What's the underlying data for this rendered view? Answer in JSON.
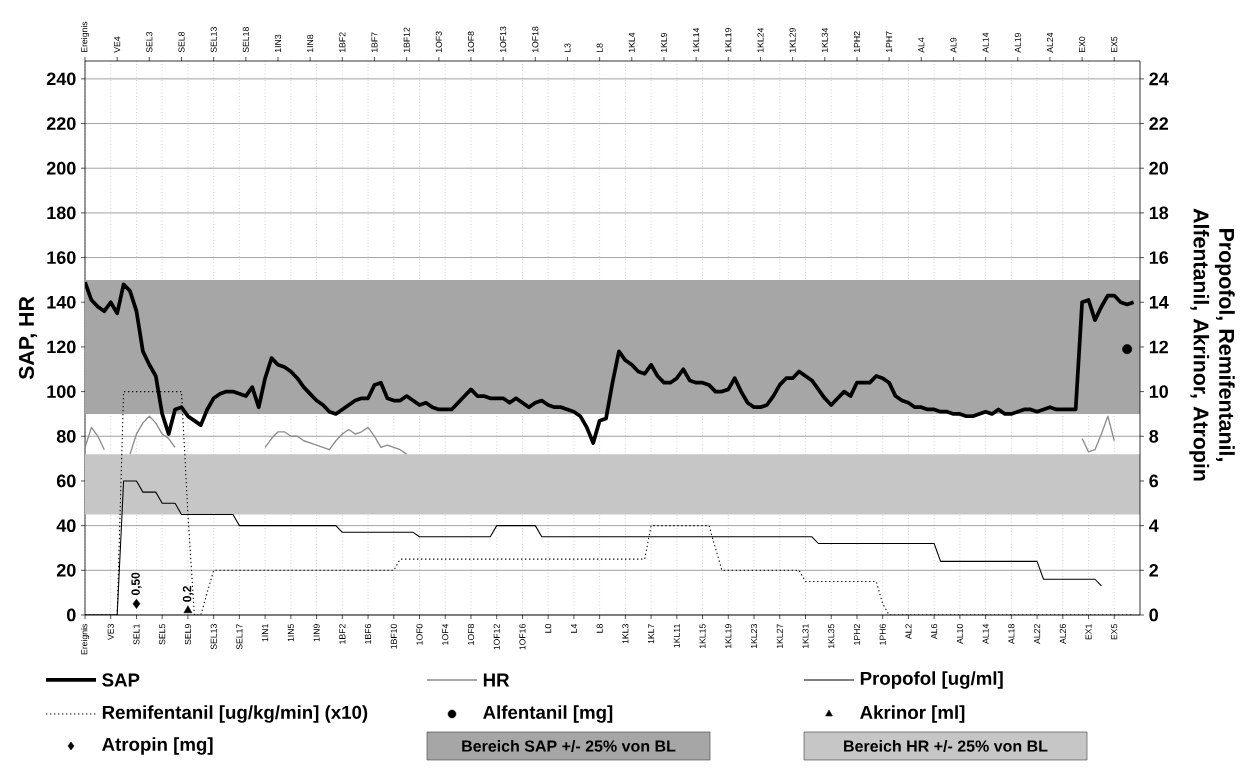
{
  "chart_data": {
    "type": "line",
    "ylabel": "SAP, HR",
    "y2label": "Propofol, Remifentanil, Alfentanil, Akrinor, Atropin",
    "categories": [
      "Ereignis",
      null,
      null,
      null,
      "VE3",
      null,
      null,
      null,
      "SEL1",
      null,
      null,
      null,
      "SEL5",
      null,
      null,
      null,
      "SEL9",
      null,
      null,
      null,
      "SEL13",
      null,
      null,
      null,
      "SEL17",
      null,
      null,
      null,
      "1IN1",
      null,
      null,
      null,
      "1IN5",
      null,
      null,
      null,
      "1IN9",
      null,
      null,
      null,
      "1BF2",
      null,
      null,
      null,
      "1BF6",
      null,
      null,
      null,
      "1BF10",
      null,
      null,
      null,
      "1OF0",
      null,
      null,
      null,
      "1OF4",
      null,
      null,
      null,
      "1OF8",
      null,
      null,
      null,
      "1OF12",
      null,
      null,
      null,
      "1OF16",
      null,
      null,
      null,
      "L0",
      null,
      null,
      null,
      "L4",
      null,
      null,
      null,
      "L8",
      null,
      null,
      null,
      "1KL3",
      null,
      null,
      null,
      "1KL7",
      null,
      null,
      null,
      "1KL11",
      null,
      null,
      null,
      "1KL15",
      null,
      null,
      null,
      "1KL19",
      null,
      null,
      null,
      "1KL23",
      null,
      null,
      null,
      "1KL27",
      null,
      null,
      null,
      "1KL31",
      null,
      null,
      null,
      "1KL35",
      null,
      null,
      null,
      "1PH2",
      null,
      null,
      null,
      "1PH6",
      null,
      null,
      null,
      "AL2",
      null,
      null,
      null,
      "AL6",
      null,
      null,
      null,
      "AL10",
      null,
      null,
      null,
      "AL14",
      null,
      null,
      null,
      "AL18",
      null,
      null,
      null,
      "AL22",
      null,
      null,
      null,
      "AL26",
      null,
      null,
      null,
      "EX1",
      null,
      null,
      null,
      "EX5",
      null,
      null,
      null
    ],
    "annotations": [
      "Ereignis",
      "VE4",
      "SEL3",
      "SEL8",
      "SEL13",
      "SEL18",
      "1IN3",
      "1IN8",
      "1BF2",
      "1BF7",
      "1BF12",
      "1OF3",
      "1OF8",
      "1OF13",
      "1OF18",
      "L3",
      "L8",
      "1KL4",
      "1KL9",
      "1KL14",
      "1KL19",
      "1KL24",
      "1KL29",
      "1KL34",
      "1PH2",
      "1PH7",
      "AL4",
      "AL9",
      "AL14",
      "AL19",
      "AL24",
      "EX0",
      "EX5"
    ],
    "ylim": [
      0,
      248
    ],
    "yticks": [
      0,
      20,
      40,
      60,
      80,
      100,
      120,
      140,
      160,
      180,
      200,
      220,
      240
    ],
    "y2lim": [
      0,
      24.8
    ],
    "y2ticks": [
      0,
      2,
      4,
      6,
      8,
      10,
      12,
      14,
      16,
      18,
      20,
      22,
      24
    ],
    "grid": true,
    "legend": "bottom",
    "bands": [
      {
        "axis": "y",
        "from": 90,
        "to": 150,
        "label": "Bereich SAP +/- 25% von BL",
        "color": "#a6a6a6"
      },
      {
        "axis": "y",
        "from": 45,
        "to": 72,
        "label": "Bereich HR +/- 25% von BL",
        "color": "#c6c6c6"
      }
    ],
    "series": [
      {
        "name": "SAP",
        "color": "#000000",
        "values": [
          149,
          141,
          138,
          136,
          140,
          135,
          148,
          145,
          136,
          118,
          112,
          107,
          90,
          81,
          92,
          93,
          89,
          87,
          85,
          92,
          97,
          99,
          100,
          100,
          99,
          98,
          102,
          93,
          106,
          115,
          112,
          111,
          109,
          106,
          102,
          99,
          96,
          94,
          91,
          90,
          92,
          94,
          96,
          97,
          97,
          103,
          104,
          97,
          96,
          96,
          98,
          96,
          94,
          95,
          93,
          92,
          92,
          92,
          95,
          98,
          101,
          98,
          98,
          97,
          97,
          97,
          95,
          97,
          95,
          93,
          95,
          96,
          94,
          93,
          93,
          92,
          91,
          89,
          84,
          77,
          87,
          88,
          104,
          118,
          114,
          112,
          109,
          108,
          112,
          107,
          104,
          104,
          106,
          110,
          105,
          104,
          104,
          103,
          100,
          100,
          101,
          106,
          100,
          95,
          93,
          93,
          94,
          98,
          103,
          106,
          106,
          109,
          107,
          105,
          101,
          97,
          94,
          97,
          100,
          98,
          104,
          104,
          104,
          107,
          106,
          104,
          98,
          96,
          95,
          93,
          93,
          92,
          92,
          91,
          91,
          90,
          90,
          89,
          89,
          90,
          91,
          90,
          92,
          90,
          90,
          91,
          92,
          92,
          91,
          92,
          93,
          92,
          92,
          92,
          92,
          140,
          141,
          132,
          138,
          143,
          143,
          140,
          139,
          140
        ]
      },
      {
        "name": "HR",
        "color": "#8c8c8c",
        "values": [
          75,
          84,
          80,
          74,
          null,
          null,
          null,
          72,
          81,
          86,
          89,
          86,
          81,
          79,
          75,
          null,
          null,
          null,
          null,
          null,
          null,
          null,
          null,
          null,
          null,
          null,
          null,
          null,
          75,
          79,
          82,
          82,
          80,
          80,
          78,
          77,
          76,
          75,
          74,
          78,
          81,
          83,
          81,
          82,
          84,
          80,
          75,
          76,
          75,
          74,
          72,
          null,
          null,
          null,
          null,
          null,
          null,
          null,
          null,
          null,
          null,
          null,
          null,
          null,
          null,
          null,
          null,
          null,
          null,
          null,
          null,
          null,
          null,
          null,
          null,
          null,
          null,
          null,
          null,
          null,
          null,
          null,
          null,
          null,
          null,
          null,
          null,
          null,
          null,
          null,
          null,
          null,
          null,
          null,
          null,
          null,
          null,
          null,
          null,
          null,
          null,
          null,
          null,
          null,
          null,
          null,
          null,
          null,
          null,
          null,
          null,
          null,
          null,
          null,
          null,
          null,
          null,
          null,
          null,
          null,
          null,
          null,
          null,
          null,
          null,
          null,
          null,
          null,
          null,
          null,
          null,
          null,
          null,
          null,
          null,
          null,
          null,
          null,
          null,
          null,
          null,
          null,
          null,
          null,
          null,
          null,
          null,
          null,
          null,
          null,
          null,
          null,
          null,
          null,
          null,
          79,
          73,
          74,
          81,
          89,
          78,
          null,
          null,
          null
        ]
      },
      {
        "name": "Propofol [ug/ml]",
        "type": "line",
        "axis": "y2",
        "color": "#000000",
        "values": [
          0,
          0,
          0,
          0,
          0,
          0,
          6,
          6,
          6,
          5.5,
          5.5,
          5.5,
          5,
          5,
          5,
          4.5,
          4.5,
          4.5,
          4.5,
          4.5,
          4.5,
          4.5,
          4.5,
          4.5,
          4,
          4,
          4,
          4,
          4,
          4,
          4,
          4,
          4,
          4,
          4,
          4,
          4,
          4,
          4,
          4,
          3.7,
          3.7,
          3.7,
          3.7,
          3.7,
          3.7,
          3.7,
          3.7,
          3.7,
          3.7,
          3.7,
          3.7,
          3.5,
          3.5,
          3.5,
          3.5,
          3.5,
          3.5,
          3.5,
          3.5,
          3.5,
          3.5,
          3.5,
          3.5,
          4,
          4,
          4,
          4,
          4,
          4,
          4,
          3.5,
          3.5,
          3.5,
          3.5,
          3.5,
          3.5,
          3.5,
          3.5,
          3.5,
          3.5,
          3.5,
          3.5,
          3.5,
          3.5,
          3.5,
          3.5,
          3.5,
          3.5,
          3.5,
          3.5,
          3.5,
          3.5,
          3.5,
          3.5,
          3.5,
          3.5,
          3.5,
          3.5,
          3.5,
          3.5,
          3.5,
          3.5,
          3.5,
          3.5,
          3.5,
          3.5,
          3.5,
          3.5,
          3.5,
          3.5,
          3.5,
          3.5,
          3.5,
          3.2,
          3.2,
          3.2,
          3.2,
          3.2,
          3.2,
          3.2,
          3.2,
          3.2,
          3.2,
          3.2,
          3.2,
          3.2,
          3.2,
          3.2,
          3.2,
          3.2,
          3.2,
          3.2,
          2.4,
          2.4,
          2.4,
          2.4,
          2.4,
          2.4,
          2.4,
          2.4,
          2.4,
          2.4,
          2.4,
          2.4,
          2.4,
          2.4,
          2.4,
          2.4,
          1.6,
          1.6,
          1.6,
          1.6,
          1.6,
          1.6,
          1.6,
          1.6,
          1.6,
          1.3,
          null,
          null,
          null,
          null,
          null
        ]
      },
      {
        "name": "Remifentanil [ug/kg/min] (x10)",
        "type": "line",
        "axis": "y2",
        "line_style": "dotted",
        "color": "#000000",
        "values": [
          0,
          0,
          0,
          0,
          0,
          0,
          10,
          10,
          10,
          10,
          10,
          10,
          10,
          10,
          10,
          10,
          4.5,
          0,
          0,
          1,
          2,
          2,
          2,
          2,
          2,
          2,
          2,
          2,
          2,
          2,
          2,
          2,
          2,
          2,
          2,
          2,
          2,
          2,
          2,
          2,
          2,
          2,
          2,
          2,
          2,
          2,
          2,
          2,
          2,
          2.5,
          2.5,
          2.5,
          2.5,
          2.5,
          2.5,
          2.5,
          2.5,
          2.5,
          2.5,
          2.5,
          2.5,
          2.5,
          2.5,
          2.5,
          2.5,
          2.5,
          2.5,
          2.5,
          2.5,
          2.5,
          2.5,
          2.5,
          2.5,
          2.5,
          2.5,
          2.5,
          2.5,
          2.5,
          2.5,
          2.5,
          2.5,
          2.5,
          2.5,
          2.5,
          2.5,
          2.5,
          2.5,
          2.5,
          4,
          4,
          4,
          4,
          4,
          4,
          4,
          4,
          4,
          4,
          3,
          2,
          2,
          2,
          2,
          2,
          2,
          2,
          2,
          2,
          2,
          2,
          2,
          2,
          1.5,
          1.5,
          1.5,
          1.5,
          1.5,
          1.5,
          1.5,
          1.5,
          1.5,
          1.5,
          1.5,
          1.5,
          0.5,
          0,
          0,
          0,
          0,
          0,
          0,
          0,
          0,
          0,
          0,
          0,
          0,
          0,
          0,
          0,
          0,
          0,
          0,
          0,
          0,
          0,
          0,
          0,
          0,
          0,
          0,
          0,
          0,
          0,
          0,
          0,
          0,
          0,
          0,
          0,
          0,
          0,
          0,
          0
        ]
      },
      {
        "name": "Alfentanil [mg]",
        "type": "scatter",
        "axis": "y2",
        "marker": "circle",
        "color": "#000000",
        "values": [
          null,
          null,
          null,
          null,
          null,
          null,
          null,
          null,
          null,
          null,
          null,
          null,
          null,
          null,
          null,
          null,
          null,
          null,
          null,
          null,
          null,
          null,
          null,
          null,
          null,
          null,
          null,
          null,
          null,
          null,
          null,
          null,
          null,
          null,
          null,
          null,
          null,
          null,
          null,
          null,
          null,
          null,
          null,
          null,
          null,
          null,
          null,
          null,
          null,
          null,
          null,
          null,
          null,
          null,
          null,
          null,
          null,
          null,
          null,
          null,
          null,
          null,
          null,
          null,
          null,
          null,
          null,
          null,
          null,
          null,
          null,
          null,
          null,
          null,
          null,
          null,
          null,
          null,
          null,
          null,
          null,
          null,
          null,
          null,
          null,
          null,
          null,
          null,
          null,
          null,
          null,
          null,
          null,
          null,
          null,
          null,
          null,
          null,
          null,
          null,
          null,
          null,
          null,
          null,
          null,
          null,
          null,
          null,
          null,
          null,
          null,
          null,
          null,
          null,
          null,
          null,
          null,
          null,
          null,
          null,
          null,
          null,
          null,
          null,
          null,
          null,
          null,
          null,
          null,
          null,
          null,
          null,
          null,
          null,
          null,
          null,
          null,
          null,
          null,
          null,
          null,
          null,
          null,
          null,
          null,
          null,
          null,
          null,
          null,
          null,
          null,
          null,
          null,
          null,
          null,
          null,
          null,
          null,
          null,
          null,
          null,
          null,
          11.9,
          null
        ]
      },
      {
        "name": "Akrinor [ml]",
        "type": "scatter",
        "axis": "y2",
        "marker": "triangle",
        "color": "#000000",
        "values": [
          null,
          null,
          null,
          null,
          null,
          null,
          null,
          null,
          null,
          null,
          null,
          null,
          null,
          null,
          null,
          null,
          0.2,
          null,
          null,
          null,
          null,
          null,
          null,
          null,
          null,
          null,
          null,
          null,
          null,
          null,
          null,
          null,
          null,
          null,
          null,
          null,
          null,
          null,
          null,
          null,
          null,
          null,
          null,
          null,
          null,
          null,
          null,
          null,
          null,
          null,
          null,
          null,
          null,
          null,
          null,
          null,
          null,
          null,
          null,
          null,
          null,
          null,
          null,
          null,
          null,
          null,
          null,
          null,
          null,
          null,
          null,
          null,
          null,
          null,
          null,
          null,
          null,
          null,
          null,
          null,
          null,
          null,
          null,
          null,
          null,
          null,
          null,
          null,
          null,
          null,
          null,
          null,
          null,
          null,
          null,
          null,
          null,
          null,
          null,
          null,
          null,
          null,
          null,
          null,
          null,
          null,
          null,
          null,
          null,
          null,
          null,
          null,
          null,
          null,
          null,
          null,
          null,
          null,
          null,
          null,
          null,
          null,
          null,
          null,
          null,
          null,
          null,
          null,
          null,
          null,
          null,
          null,
          null,
          null,
          null,
          null,
          null,
          null,
          null,
          null,
          null,
          null,
          null,
          null,
          null,
          null,
          null,
          null,
          null,
          null,
          null,
          null,
          null,
          null,
          null,
          null,
          null,
          null,
          null,
          null,
          null,
          null,
          null,
          null
        ],
        "value_labels": [
          null,
          null,
          null,
          null,
          null,
          null,
          null,
          null,
          null,
          null,
          null,
          null,
          null,
          null,
          null,
          null,
          "0,2",
          null,
          null,
          null,
          null,
          null,
          null,
          null,
          null,
          null,
          null,
          null,
          null,
          null,
          null,
          null,
          null,
          null,
          null,
          null,
          null,
          null,
          null,
          null,
          null,
          null,
          null,
          null,
          null,
          null,
          null,
          null,
          null,
          null,
          null,
          null,
          null,
          null,
          null,
          null,
          null,
          null,
          null,
          null,
          null,
          null,
          null,
          null,
          null,
          null,
          null,
          null,
          null,
          null,
          null,
          null,
          null,
          null,
          null,
          null,
          null,
          null,
          null,
          null,
          null,
          null,
          null,
          null,
          null,
          null,
          null,
          null,
          null,
          null,
          null,
          null,
          null,
          null,
          null,
          null,
          null,
          null,
          null,
          null,
          null,
          null,
          null,
          null,
          null,
          null,
          null,
          null,
          null,
          null,
          null,
          null,
          null,
          null,
          null,
          null,
          null,
          null,
          null,
          null,
          null,
          null,
          null,
          null,
          null,
          null,
          null,
          null,
          null,
          null,
          null,
          null,
          null,
          null,
          null,
          null,
          null,
          null,
          null,
          null,
          null,
          null,
          null,
          null,
          null,
          null,
          null,
          null,
          null,
          null,
          null,
          null,
          null,
          null,
          null,
          null,
          null,
          null,
          null,
          null,
          null,
          null,
          null,
          null
        ]
      },
      {
        "name": "Atropin [mg]",
        "type": "scatter",
        "axis": "y2",
        "marker": "diamond",
        "color": "#000000",
        "values": [
          null,
          null,
          null,
          null,
          null,
          null,
          null,
          null,
          0.5,
          null,
          null,
          null,
          null,
          null,
          null,
          null,
          null,
          null,
          null,
          null,
          null,
          null,
          null,
          null,
          null,
          null,
          null,
          null,
          null,
          null,
          null,
          null,
          null,
          null,
          null,
          null,
          null,
          null,
          null,
          null,
          null,
          null,
          null,
          null,
          null,
          null,
          null,
          null,
          null,
          null,
          null,
          null,
          null,
          null,
          null,
          null,
          null,
          null,
          null,
          null,
          null,
          null,
          null,
          null,
          null,
          null,
          null,
          null,
          null,
          null,
          null,
          null,
          null,
          null,
          null,
          null,
          null,
          null,
          null,
          null,
          null,
          null,
          null,
          null,
          null,
          null,
          null,
          null,
          null,
          null,
          null,
          null,
          null,
          null,
          null,
          null,
          null,
          null,
          null,
          null,
          null,
          null,
          null,
          null,
          null,
          null,
          null,
          null,
          null,
          null,
          null,
          null,
          null,
          null,
          null,
          null,
          null,
          null,
          null,
          null,
          null,
          null,
          null,
          null,
          null,
          null,
          null,
          null,
          null,
          null,
          null,
          null,
          null,
          null,
          null,
          null,
          null,
          null,
          null,
          null,
          null,
          null,
          null,
          null,
          null,
          null,
          null,
          null,
          null,
          null,
          null,
          null,
          null,
          null,
          null,
          null,
          null,
          null,
          null,
          null,
          null,
          null,
          null,
          null
        ],
        "value_labels": [
          null,
          null,
          null,
          null,
          null,
          null,
          null,
          null,
          "0,50",
          null,
          null,
          null,
          null,
          null,
          null,
          null,
          null,
          null,
          null,
          null,
          null,
          null,
          null,
          null,
          null,
          null,
          null,
          null,
          null,
          null,
          null,
          null,
          null,
          null,
          null,
          null,
          null,
          null,
          null,
          null,
          null,
          null,
          null,
          null,
          null,
          null,
          null,
          null,
          null,
          null,
          null,
          null,
          null,
          null,
          null,
          null,
          null,
          null,
          null,
          null,
          null,
          null,
          null,
          null,
          null,
          null,
          null,
          null,
          null,
          null,
          null,
          null,
          null,
          null,
          null,
          null,
          null,
          null,
          null,
          null,
          null,
          null,
          null,
          null,
          null,
          null,
          null,
          null,
          null,
          null,
          null,
          null,
          null,
          null,
          null,
          null,
          null,
          null,
          null,
          null,
          null,
          null,
          null,
          null,
          null,
          null,
          null,
          null,
          null,
          null,
          null,
          null,
          null,
          null,
          null,
          null,
          null,
          null,
          null,
          null,
          null,
          null,
          null,
          null,
          null,
          null,
          null,
          null,
          null,
          null,
          null,
          null,
          null,
          null,
          null,
          null,
          null,
          null,
          null,
          null,
          null,
          null,
          null,
          null,
          null,
          null,
          null,
          null,
          null,
          null,
          null,
          null,
          null,
          null,
          null,
          null,
          null,
          null,
          null,
          null,
          null,
          null,
          null,
          null
        ]
      }
    ]
  }
}
